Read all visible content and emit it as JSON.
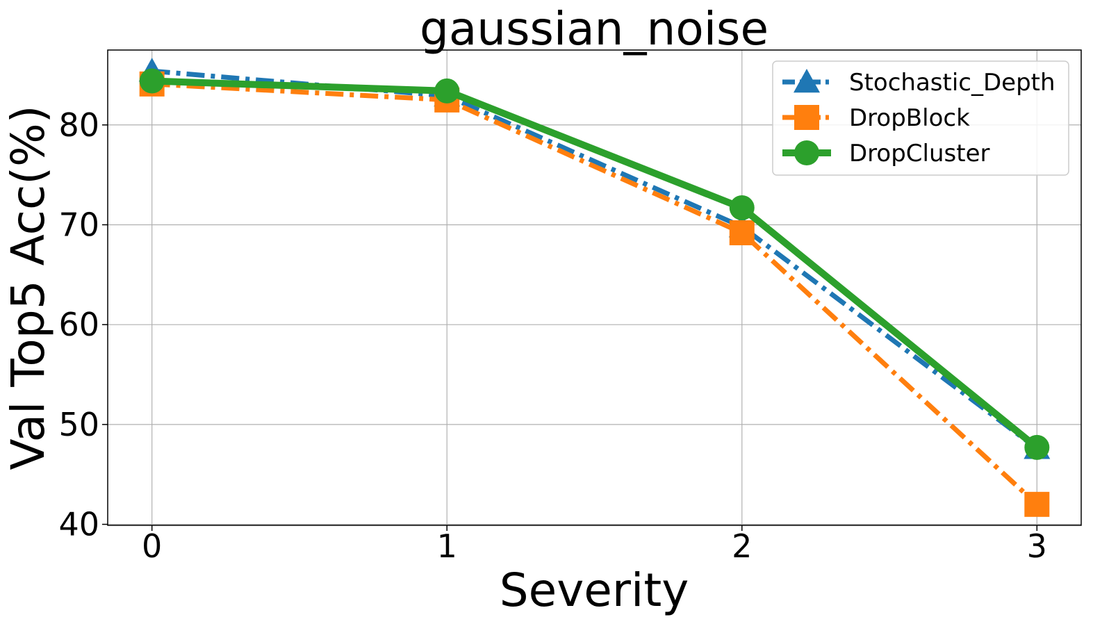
{
  "chart_data": {
    "type": "line",
    "title": "gaussian_noise",
    "xlabel": "Severity",
    "ylabel": "Val Top5 Acc(%)",
    "x": [
      0,
      1,
      2,
      3
    ],
    "x_ticks": [
      "0",
      "1",
      "2",
      "3"
    ],
    "y_ticks": [
      "40",
      "50",
      "60",
      "70",
      "80"
    ],
    "xlim": [
      -0.15,
      3.15
    ],
    "ylim": [
      39.9,
      87.5
    ],
    "grid": true,
    "legend_position": "top-right",
    "series": [
      {
        "name": "Stochastic_Depth",
        "values": [
          85.4,
          82.9,
          69.8,
          47.6
        ],
        "color": "#1f77b4",
        "line_style": "dash-dot",
        "marker": "triangle"
      },
      {
        "name": "DropBlock",
        "values": [
          84.1,
          82.5,
          69.2,
          42.0
        ],
        "color": "#ff7f0e",
        "line_style": "dash-dot",
        "marker": "square"
      },
      {
        "name": "DropCluster",
        "values": [
          84.4,
          83.4,
          71.7,
          47.7
        ],
        "color": "#2ca02c",
        "line_style": "solid",
        "marker": "circle"
      }
    ]
  }
}
